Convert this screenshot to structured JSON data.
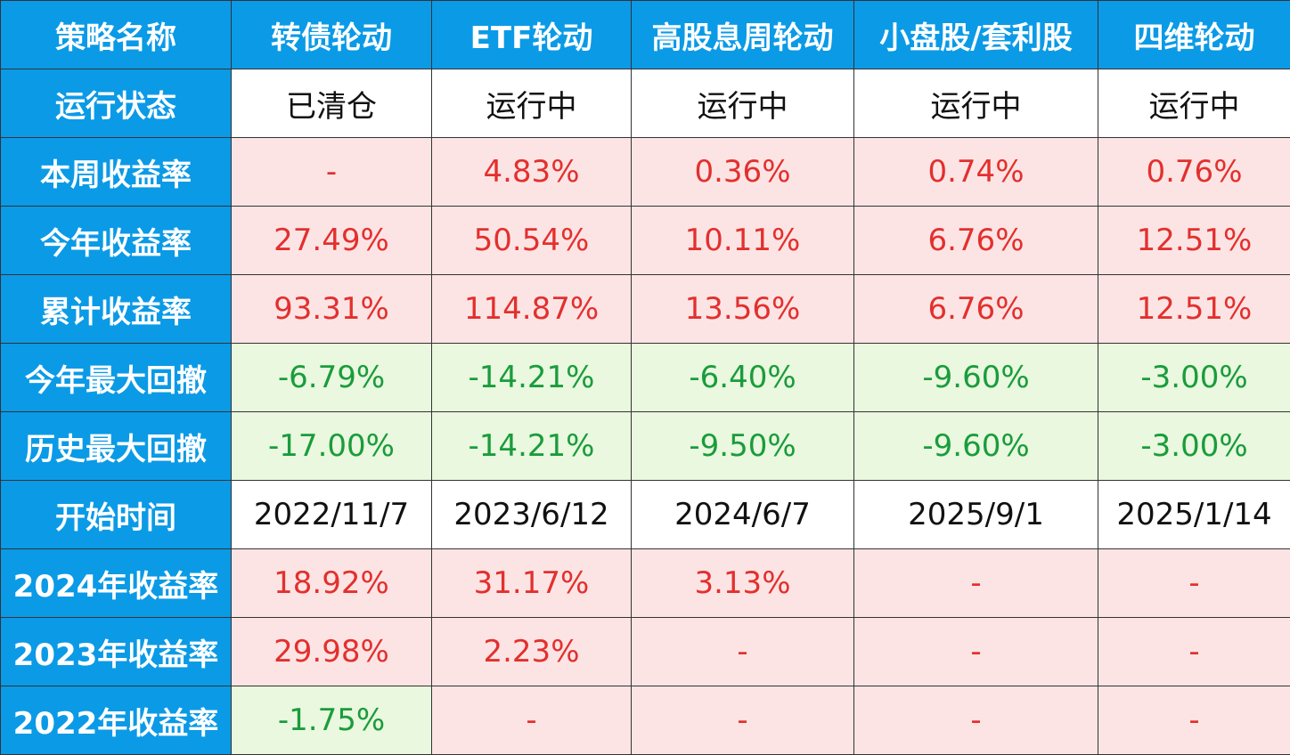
{
  "table": {
    "header": [
      "策略名称",
      "转债轮动",
      "ETF轮动",
      "高股息周轮动",
      "小盘股/套利股",
      "四维轮动"
    ],
    "rows": [
      {
        "label": "运行状态",
        "cells": [
          "已清仓",
          "运行中",
          "运行中",
          "运行中",
          "运行中"
        ]
      },
      {
        "label": "本周收益率",
        "cells": [
          "-",
          "4.83%",
          "0.36%",
          "0.74%",
          "0.76%"
        ]
      },
      {
        "label": "今年收益率",
        "cells": [
          "27.49%",
          "50.54%",
          "10.11%",
          "6.76%",
          "12.51%"
        ]
      },
      {
        "label": "累计收益率",
        "cells": [
          "93.31%",
          "114.87%",
          "13.56%",
          "6.76%",
          "12.51%"
        ]
      },
      {
        "label": "今年最大回撤",
        "cells": [
          "-6.79%",
          "-14.21%",
          "-6.40%",
          "-9.60%",
          "-3.00%"
        ]
      },
      {
        "label": "历史最大回撤",
        "cells": [
          "-17.00%",
          "-14.21%",
          "-9.50%",
          "-9.60%",
          "-3.00%"
        ]
      },
      {
        "label": "开始时间",
        "cells": [
          "2022/11/7",
          "2023/6/12",
          "2024/6/7",
          "2025/9/1",
          "2025/1/14"
        ]
      },
      {
        "label": "2024年收益率",
        "cells": [
          "18.92%",
          "31.17%",
          "3.13%",
          "-",
          "-"
        ]
      },
      {
        "label": "2023年收益率",
        "cells": [
          "29.98%",
          "2.23%",
          "-",
          "-",
          "-"
        ]
      },
      {
        "label": "2022年收益率",
        "cells": [
          "-1.75%",
          "-",
          "-",
          "-",
          "-"
        ]
      }
    ]
  }
}
